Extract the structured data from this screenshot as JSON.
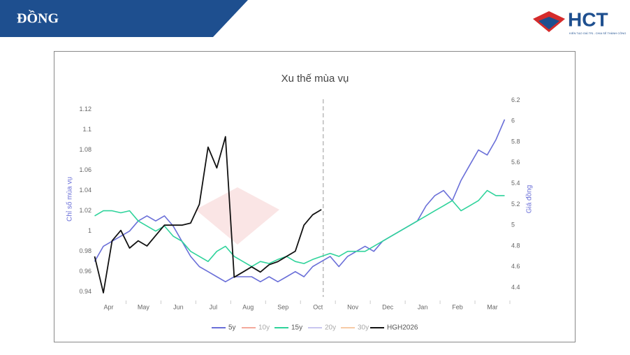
{
  "header": {
    "title": "ĐỒNG",
    "logo": "HCT",
    "logo_tagline": "KIẾN TẠO GIÁ TRỊ - CHIA SẺ THÀNH CÔNG"
  },
  "chart_data": {
    "type": "line",
    "title": "Xu thế mùa vụ",
    "y_label": "Chỉ số mùa vụ",
    "y2_label": "Giá đồng",
    "x": [
      -0.4,
      -0.15,
      0.1,
      0.35,
      0.6,
      0.85,
      1.1,
      1.35,
      1.6,
      1.85,
      2.1,
      2.35,
      2.6,
      2.85,
      3.1,
      3.35,
      3.6,
      3.85,
      4.1,
      4.35,
      4.6,
      4.85,
      5.1,
      5.35,
      5.6,
      5.85,
      6.1,
      6.35,
      6.6,
      6.85,
      7.1,
      7.35,
      7.6,
      7.85,
      8.1,
      8.35,
      8.6,
      8.85,
      9.1,
      9.35,
      9.6,
      9.85,
      10.1,
      10.35,
      10.6,
      10.85,
      11.1,
      11.35
    ],
    "xlim": [
      -0.45,
      11.5
    ],
    "xticks": [
      {
        "value": 0,
        "label": "Apr"
      },
      {
        "value": 1,
        "label": "May"
      },
      {
        "value": 2,
        "label": "Jun"
      },
      {
        "value": 3,
        "label": "Jul"
      },
      {
        "value": 4,
        "label": "Aug"
      },
      {
        "value": 5,
        "label": "Sep"
      },
      {
        "value": 6,
        "label": "Oct"
      },
      {
        "value": 7,
        "label": "Nov"
      },
      {
        "value": 8,
        "label": "Dec"
      },
      {
        "value": 9,
        "label": "Jan"
      },
      {
        "value": 10,
        "label": "Feb"
      },
      {
        "value": 11,
        "label": "Mar"
      }
    ],
    "ylim": [
      0.935,
      1.13
    ],
    "yticks": [
      0.94,
      0.96,
      0.98,
      1,
      1.02,
      1.04,
      1.06,
      1.08,
      1.1,
      1.12
    ],
    "y2lim": [
      4.31,
      6.21
    ],
    "y2ticks": [
      4.4,
      4.6,
      4.8,
      5,
      5.2,
      5.4,
      5.6,
      5.8,
      6,
      6.2
    ],
    "vline_x": 6.15,
    "grid": false,
    "series": [
      {
        "name": "5y",
        "color": "#6a6fd8",
        "values": [
          0.97,
          0.985,
          0.99,
          0.995,
          1.0,
          1.01,
          1.015,
          1.01,
          1.015,
          1.005,
          0.99,
          0.975,
          0.965,
          0.96,
          0.955,
          0.95,
          0.955,
          0.955,
          0.955,
          0.95,
          0.955,
          0.95,
          0.955,
          0.96,
          0.955,
          0.965,
          0.97,
          0.975,
          0.965,
          0.975,
          0.98,
          0.985,
          0.98,
          0.99,
          0.995,
          1.0,
          1.005,
          1.01,
          1.025,
          1.035,
          1.04,
          1.03,
          1.05,
          1.065,
          1.08,
          1.075,
          1.09,
          1.11
        ]
      },
      {
        "name": "10y",
        "color": "#f4a99c",
        "visible": false
      },
      {
        "name": "15y",
        "color": "#2fd39b",
        "values": [
          1.015,
          1.02,
          1.02,
          1.018,
          1.02,
          1.01,
          1.005,
          1.0,
          1.005,
          0.995,
          0.99,
          0.98,
          0.975,
          0.97,
          0.98,
          0.985,
          0.975,
          0.97,
          0.965,
          0.97,
          0.968,
          0.972,
          0.975,
          0.97,
          0.968,
          0.972,
          0.975,
          0.978,
          0.975,
          0.98,
          0.98,
          0.98,
          0.985,
          0.99,
          0.995,
          1.0,
          1.005,
          1.01,
          1.015,
          1.02,
          1.025,
          1.03,
          1.02,
          1.025,
          1.03,
          1.04,
          1.035,
          1.035
        ]
      },
      {
        "name": "20y",
        "color": "#c9c6f0",
        "visible": false
      },
      {
        "name": "30y",
        "color": "#f7cba6",
        "visible": false
      },
      {
        "name": "HGH2026",
        "color": "#111111",
        "axis": "y2",
        "values": [
          4.7,
          4.35,
          4.85,
          4.95,
          4.78,
          4.85,
          4.8,
          4.9,
          5.0,
          5.0,
          5.0,
          5.02,
          5.2,
          5.75,
          5.55,
          5.85,
          4.5,
          4.55,
          4.6,
          4.55,
          4.62,
          4.65,
          4.7,
          4.75,
          5.0,
          5.1,
          5.15,
          null,
          null,
          null,
          null,
          null,
          null,
          null,
          null,
          null,
          null,
          null,
          null,
          null,
          null,
          null,
          null,
          null,
          null,
          null,
          null,
          null
        ]
      }
    ]
  }
}
